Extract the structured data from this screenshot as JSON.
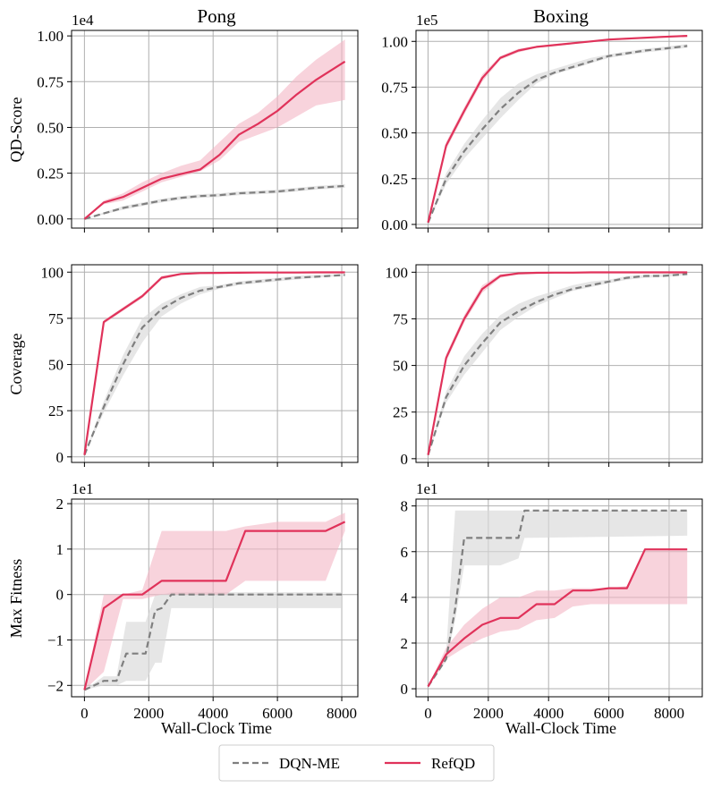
{
  "figure": {
    "columns": [
      "Pong",
      "Boxing"
    ],
    "row_labels": [
      "QD-Score",
      "Coverage",
      "Max Fitness"
    ],
    "xlabel": "Wall-Clock Time"
  },
  "legend": {
    "entries": [
      {
        "name": "DQN-ME",
        "color": "#7f7f7f",
        "style": "dashed"
      },
      {
        "name": "RefQD",
        "color": "#e0325a",
        "style": "solid"
      }
    ]
  },
  "colors": {
    "dqn": "#7f7f7f",
    "dqn_band": "#d9d9d9",
    "ref": "#e0325a",
    "ref_band": "#f4b6c4"
  },
  "chart_data": [
    {
      "type": "line",
      "title": "Pong",
      "ylabel": "QD-Score",
      "multiplier": "1e4",
      "xlim": [
        -400,
        8500
      ],
      "ylim": [
        -0.05,
        1.03
      ],
      "xticks": [
        0,
        2000,
        4000,
        6000,
        8000
      ],
      "xtick_labels": [
        "",
        "",
        "",
        "",
        ""
      ],
      "yticks": [
        0,
        0.25,
        0.5,
        0.75,
        1.0
      ],
      "ytick_labels": [
        "0.00",
        "0.25",
        "0.50",
        "0.75",
        "1.00"
      ],
      "series": [
        {
          "name": "DQN-ME",
          "x": [
            0,
            600,
            1200,
            1800,
            2400,
            3000,
            3600,
            4200,
            4800,
            5400,
            6000,
            6600,
            7200,
            8100
          ],
          "y": [
            0,
            0.03,
            0.06,
            0.08,
            0.1,
            0.115,
            0.125,
            0.13,
            0.14,
            0.145,
            0.15,
            0.16,
            0.17,
            0.18
          ],
          "lower": [
            0,
            0.025,
            0.05,
            0.07,
            0.09,
            0.105,
            0.115,
            0.12,
            0.13,
            0.135,
            0.14,
            0.15,
            0.16,
            0.17
          ],
          "upper": [
            0,
            0.035,
            0.07,
            0.09,
            0.11,
            0.125,
            0.135,
            0.14,
            0.15,
            0.155,
            0.16,
            0.17,
            0.18,
            0.19
          ]
        },
        {
          "name": "RefQD",
          "x": [
            0,
            600,
            1200,
            1800,
            2400,
            3000,
            3600,
            4200,
            4800,
            5400,
            6000,
            6600,
            7200,
            8100
          ],
          "y": [
            0,
            0.09,
            0.12,
            0.17,
            0.22,
            0.245,
            0.27,
            0.35,
            0.46,
            0.52,
            0.59,
            0.68,
            0.76,
            0.86
          ],
          "lower": [
            0,
            0.08,
            0.1,
            0.15,
            0.2,
            0.23,
            0.26,
            0.32,
            0.42,
            0.46,
            0.5,
            0.56,
            0.62,
            0.65
          ],
          "upper": [
            0,
            0.1,
            0.14,
            0.2,
            0.25,
            0.29,
            0.32,
            0.42,
            0.52,
            0.58,
            0.67,
            0.78,
            0.87,
            0.98
          ]
        }
      ]
    },
    {
      "type": "line",
      "title": "Boxing",
      "ylabel": "",
      "multiplier": "1e5",
      "xlim": [
        -400,
        9100
      ],
      "ylim": [
        -0.02,
        1.06
      ],
      "xticks": [
        0,
        2000,
        4000,
        6000,
        8000
      ],
      "xtick_labels": [
        "",
        "",
        "",
        "",
        ""
      ],
      "yticks": [
        0,
        0.25,
        0.5,
        0.75,
        1.0
      ],
      "ytick_labels": [
        "0.00",
        "0.25",
        "0.50",
        "0.75",
        "1.00"
      ],
      "series": [
        {
          "name": "DQN-ME",
          "x": [
            0,
            600,
            1200,
            1800,
            2400,
            3000,
            3600,
            4200,
            4800,
            5400,
            6000,
            6600,
            7200,
            7800,
            8600
          ],
          "y": [
            0.01,
            0.25,
            0.4,
            0.52,
            0.63,
            0.72,
            0.79,
            0.83,
            0.86,
            0.89,
            0.92,
            0.935,
            0.95,
            0.96,
            0.975
          ],
          "lower": [
            0.01,
            0.22,
            0.36,
            0.47,
            0.58,
            0.68,
            0.77,
            0.82,
            0.85,
            0.88,
            0.91,
            0.925,
            0.94,
            0.95,
            0.965
          ],
          "upper": [
            0.01,
            0.28,
            0.44,
            0.57,
            0.69,
            0.77,
            0.82,
            0.85,
            0.88,
            0.91,
            0.93,
            0.945,
            0.96,
            0.97,
            0.985
          ]
        },
        {
          "name": "RefQD",
          "x": [
            0,
            600,
            1200,
            1800,
            2400,
            3000,
            3600,
            4200,
            4800,
            5400,
            6000,
            6600,
            7200,
            7800,
            8600
          ],
          "y": [
            0.01,
            0.43,
            0.62,
            0.8,
            0.91,
            0.95,
            0.97,
            0.98,
            0.99,
            1.0,
            1.01,
            1.015,
            1.02,
            1.025,
            1.03
          ],
          "lower": [
            0.01,
            0.41,
            0.6,
            0.78,
            0.9,
            0.94,
            0.965,
            0.975,
            0.985,
            0.995,
            1.005,
            1.01,
            1.015,
            1.02,
            1.025
          ],
          "upper": [
            0.01,
            0.45,
            0.64,
            0.82,
            0.92,
            0.96,
            0.975,
            0.985,
            0.995,
            1.005,
            1.015,
            1.02,
            1.025,
            1.03,
            1.035
          ]
        }
      ]
    },
    {
      "type": "line",
      "title": "",
      "ylabel": "Coverage",
      "multiplier": "",
      "xlim": [
        -400,
        8500
      ],
      "ylim": [
        -3,
        104
      ],
      "xticks": [
        0,
        2000,
        4000,
        6000,
        8000
      ],
      "xtick_labels": [
        "",
        "",
        "",
        "",
        ""
      ],
      "yticks": [
        0,
        25,
        50,
        75,
        100
      ],
      "ytick_labels": [
        "0",
        "25",
        "50",
        "75",
        "100"
      ],
      "series": [
        {
          "name": "DQN-ME",
          "x": [
            0,
            600,
            1200,
            1800,
            2400,
            3000,
            3600,
            4200,
            4800,
            5400,
            6000,
            6600,
            7200,
            8100
          ],
          "y": [
            1,
            27,
            50,
            70,
            80,
            86,
            90,
            92,
            94,
            95,
            96,
            97,
            97.5,
            98.5
          ],
          "lower": [
            1,
            24,
            44,
            62,
            76,
            83,
            88,
            91,
            93,
            94,
            95,
            96,
            97,
            98
          ],
          "upper": [
            1,
            30,
            55,
            75,
            83,
            88,
            92,
            93,
            95,
            96,
            97,
            98,
            98.5,
            99
          ]
        },
        {
          "name": "RefQD",
          "x": [
            0,
            600,
            1200,
            1800,
            2400,
            3000,
            3600,
            4200,
            4800,
            5400,
            6000,
            6600,
            7200,
            8100
          ],
          "y": [
            1,
            73,
            80,
            87,
            97,
            99,
            99.5,
            99.6,
            99.7,
            99.8,
            99.8,
            99.8,
            99.9,
            99.9
          ],
          "lower": [
            1,
            72,
            79,
            86,
            96,
            98.5,
            99.2,
            99.4,
            99.5,
            99.6,
            99.6,
            99.6,
            99.7,
            99.7
          ],
          "upper": [
            1,
            74,
            81,
            88,
            98,
            99.5,
            99.8,
            99.8,
            99.9,
            100,
            100,
            100,
            100,
            100
          ]
        }
      ]
    },
    {
      "type": "line",
      "title": "",
      "ylabel": "",
      "multiplier": "",
      "xlim": [
        -400,
        9100
      ],
      "ylim": [
        -2,
        104
      ],
      "xticks": [
        0,
        2000,
        4000,
        6000,
        8000
      ],
      "xtick_labels": [
        "",
        "",
        "",
        "",
        ""
      ],
      "yticks": [
        0,
        25,
        50,
        75,
        100
      ],
      "ytick_labels": [
        "0",
        "25",
        "50",
        "75",
        "100"
      ],
      "series": [
        {
          "name": "DQN-ME",
          "x": [
            0,
            600,
            1200,
            1800,
            2400,
            3000,
            3600,
            4200,
            4800,
            5400,
            6000,
            6600,
            7200,
            7800,
            8600
          ],
          "y": [
            2,
            33,
            50,
            62,
            73,
            79,
            84,
            88,
            91,
            93,
            95,
            97,
            98,
            98,
            99
          ],
          "lower": [
            2,
            30,
            45,
            57,
            69,
            76,
            82,
            86,
            90,
            92,
            94,
            96,
            97,
            97.5,
            98.5
          ],
          "upper": [
            2,
            36,
            55,
            67,
            77,
            83,
            87,
            90,
            93,
            95,
            96,
            98,
            98.5,
            99,
            99.5
          ]
        },
        {
          "name": "RefQD",
          "x": [
            0,
            600,
            1200,
            1800,
            2400,
            3000,
            3600,
            4200,
            4800,
            5400,
            6000,
            6600,
            7200,
            7800,
            8600
          ],
          "y": [
            2,
            54,
            75,
            91,
            98,
            99.4,
            99.7,
            99.8,
            99.8,
            99.9,
            99.9,
            99.9,
            99.9,
            99.9,
            99.9
          ],
          "lower": [
            2,
            52,
            73,
            89,
            97,
            99,
            99.5,
            99.6,
            99.7,
            99.7,
            99.7,
            99.7,
            99.7,
            99.7,
            99.7
          ],
          "upper": [
            2,
            56,
            77,
            93,
            99,
            99.8,
            99.9,
            100,
            100,
            100,
            100,
            100,
            100,
            100,
            100
          ]
        }
      ]
    },
    {
      "type": "line",
      "title": "",
      "ylabel": "Max Fitness",
      "multiplier": "1e1",
      "xlim": [
        -400,
        8500
      ],
      "ylim": [
        -2.25,
        2.1
      ],
      "xticks": [
        0,
        2000,
        4000,
        6000,
        8000
      ],
      "xtick_labels": [
        "0",
        "2000",
        "4000",
        "6000",
        "8000"
      ],
      "yticks": [
        -2,
        -1,
        0,
        1,
        2
      ],
      "ytick_labels": [
        "−2",
        "−1",
        "0",
        "1",
        "2"
      ],
      "series": [
        {
          "name": "DQN-ME",
          "x": [
            0,
            600,
            1000,
            1300,
            1900,
            2200,
            2400,
            2700,
            8000
          ],
          "y": [
            -2.1,
            -1.9,
            -1.9,
            -1.3,
            -1.3,
            -0.35,
            -0.3,
            0,
            0
          ],
          "lower": [
            -2.1,
            -2.0,
            -2.0,
            -1.9,
            -1.9,
            -1.5,
            -1.5,
            -0.3,
            -0.3
          ],
          "upper": [
            -2.1,
            -1.8,
            -1.8,
            -0.6,
            -0.6,
            0,
            0,
            0.05,
            0.05
          ]
        },
        {
          "name": "RefQD",
          "x": [
            0,
            600,
            1200,
            1800,
            2400,
            4400,
            5000,
            6000,
            7500,
            8100
          ],
          "y": [
            -2.1,
            -0.3,
            0,
            0,
            0.3,
            0.3,
            1.4,
            1.4,
            1.4,
            1.6
          ],
          "lower": [
            -2.1,
            -1.7,
            -0.1,
            -0.1,
            0,
            0,
            0.3,
            0.3,
            0.3,
            1.4
          ],
          "upper": [
            -2.1,
            0,
            0,
            0.1,
            1.4,
            1.4,
            1.5,
            1.6,
            1.6,
            1.8
          ]
        }
      ]
    },
    {
      "type": "line",
      "title": "",
      "ylabel": "",
      "multiplier": "1e1",
      "xlim": [
        -400,
        9100
      ],
      "ylim": [
        -0.35,
        8.3
      ],
      "xticks": [
        0,
        2000,
        4000,
        6000,
        8000
      ],
      "xtick_labels": [
        "0",
        "2000",
        "4000",
        "6000",
        "8000"
      ],
      "yticks": [
        0,
        2,
        4,
        6,
        8
      ],
      "ytick_labels": [
        "0",
        "2",
        "4",
        "6",
        "8"
      ],
      "series": [
        {
          "name": "DQN-ME",
          "x": [
            0,
            600,
            900,
            1200,
            2400,
            3000,
            3200,
            8600
          ],
          "y": [
            0.1,
            1.3,
            3.5,
            6.6,
            6.6,
            6.6,
            7.8,
            7.8
          ],
          "lower": [
            0.1,
            1.2,
            3.0,
            5.4,
            5.4,
            5.7,
            6.6,
            6.7
          ],
          "upper": [
            0.1,
            1.6,
            7.8,
            7.8,
            7.8,
            7.8,
            7.8,
            7.8
          ]
        },
        {
          "name": "RefQD",
          "x": [
            0,
            600,
            1200,
            1800,
            2400,
            3000,
            3600,
            4200,
            4800,
            5400,
            6000,
            6600,
            7200,
            8600
          ],
          "y": [
            0.1,
            1.5,
            2.2,
            2.8,
            3.1,
            3.1,
            3.7,
            3.7,
            4.3,
            4.3,
            4.4,
            4.4,
            6.1,
            6.1
          ],
          "lower": [
            0.1,
            1.3,
            1.8,
            2.2,
            2.5,
            2.6,
            3.0,
            3.1,
            3.6,
            3.7,
            3.7,
            3.7,
            3.7,
            3.7
          ],
          "upper": [
            0.1,
            1.8,
            2.8,
            3.5,
            4.0,
            4.0,
            4.3,
            4.3,
            4.4,
            4.4,
            4.4,
            4.5,
            6.1,
            6.1
          ]
        }
      ]
    }
  ]
}
